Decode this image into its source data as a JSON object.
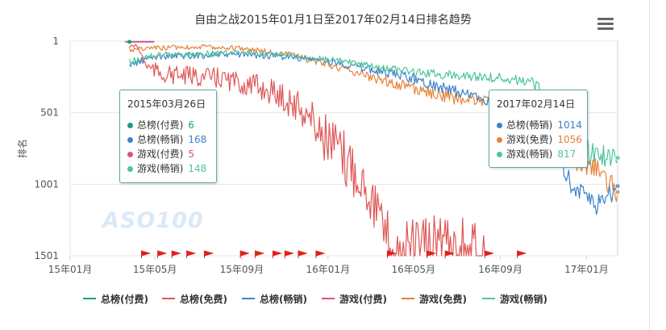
{
  "chart_data": {
    "type": "line",
    "title": "自由之战2015年01月1日至2017年02月14日排名趋势",
    "ylabel": "排名",
    "y_inverted": true,
    "ylim": [
      1,
      1501
    ],
    "y_ticks": [
      "1",
      "501",
      "1001",
      "1501"
    ],
    "x_ticks": [
      "15年01月",
      "15年05月",
      "15年09月",
      "16年01月",
      "16年05月",
      "16年09月",
      "17年01月"
    ],
    "xlim": [
      "2015-01-01",
      "2017-02-14"
    ],
    "grid": "horizontal",
    "legend_position": "bottom",
    "series": [
      {
        "name": "总榜(付费)",
        "color": "#16a085",
        "x": [
          "2015-03-26"
        ],
        "values": [
          6
        ]
      },
      {
        "name": "总榜(免费)",
        "color": "#e05757",
        "x": [
          "2015-03-25",
          "2015-04-05",
          "2015-04-20",
          "2015-05-10",
          "2015-06-01",
          "2015-07-01",
          "2015-08-01",
          "2015-09-01",
          "2015-10-01",
          "2015-11-01",
          "2015-12-01",
          "2016-01-01",
          "2016-01-20",
          "2016-02-10",
          "2016-03-01",
          "2016-03-20",
          "2016-04-05",
          "2016-04-20",
          "2016-05-05",
          "2016-05-25",
          "2016-06-15",
          "2016-07-01",
          "2016-07-20",
          "2016-08-10"
        ],
        "values": [
          40,
          30,
          180,
          230,
          240,
          250,
          260,
          300,
          330,
          400,
          500,
          700,
          820,
          900,
          1050,
          1350,
          1480,
          1450,
          1460,
          1440,
          1350,
          1420,
          1470,
          1500
        ]
      },
      {
        "name": "总榜(畅销)",
        "color": "#3d82cc",
        "x": [
          "2015-03-26",
          "2015-05-01",
          "2015-07-01",
          "2015-09-01",
          "2015-11-01",
          "2016-01-01",
          "2016-03-01",
          "2016-05-01",
          "2016-07-01",
          "2016-09-01",
          "2016-10-15",
          "2016-11-15",
          "2016-12-15",
          "2017-01-15",
          "2017-02-14"
        ],
        "values": [
          168,
          110,
          100,
          95,
          110,
          140,
          200,
          260,
          360,
          430,
          480,
          700,
          1050,
          1150,
          1014
        ]
      },
      {
        "name": "游戏(付费)",
        "color": "#d35486",
        "x": [
          "2015-03-20",
          "2015-04-30"
        ],
        "values": [
          5,
          5
        ]
      },
      {
        "name": "游戏(免费)",
        "color": "#e8833a",
        "x": [
          "2015-03-26",
          "2015-05-01",
          "2015-07-01",
          "2015-09-01",
          "2015-11-01",
          "2016-01-01",
          "2016-03-01",
          "2016-05-01",
          "2016-07-01",
          "2016-09-01",
          "2016-10-15",
          "2016-11-15",
          "2016-12-15",
          "2017-01-15",
          "2017-02-14"
        ],
        "values": [
          60,
          50,
          40,
          50,
          90,
          160,
          250,
          330,
          400,
          440,
          470,
          600,
          850,
          900,
          1056
        ]
      },
      {
        "name": "游戏(畅销)",
        "color": "#50c49b",
        "x": [
          "2015-03-26",
          "2015-05-01",
          "2015-07-01",
          "2015-09-01",
          "2015-11-01",
          "2016-01-01",
          "2016-03-01",
          "2016-05-01",
          "2016-07-01",
          "2016-09-01",
          "2016-10-15",
          "2016-11-15",
          "2016-12-15",
          "2017-01-15",
          "2017-02-14"
        ],
        "values": [
          148,
          100,
          90,
          80,
          100,
          130,
          180,
          220,
          240,
          260,
          290,
          420,
          700,
          800,
          817
        ]
      }
    ],
    "flag_dates": [
      "2015-04-12",
      "2015-05-05",
      "2015-05-25",
      "2015-06-15",
      "2015-07-10",
      "2015-08-30",
      "2015-09-20",
      "2015-10-15",
      "2015-11-01",
      "2015-11-20",
      "2015-12-15",
      "2016-03-25",
      "2016-05-20",
      "2016-06-15",
      "2016-08-10",
      "2016-09-25"
    ]
  },
  "tooltip_left": {
    "date": "2015年03月26日",
    "rows": [
      {
        "label": "总榜(付费)",
        "value": "6",
        "color": "#16a085"
      },
      {
        "label": "总榜(畅销)",
        "value": "168",
        "color": "#3d82cc"
      },
      {
        "label": "游戏(付费)",
        "value": "5",
        "color": "#d35486"
      },
      {
        "label": "游戏(畅销)",
        "value": "148",
        "color": "#50c49b"
      }
    ]
  },
  "tooltip_right": {
    "date": "2017年02月14日",
    "rows": [
      {
        "label": "总榜(畅销)",
        "value": "1014",
        "color": "#3d82cc"
      },
      {
        "label": "游戏(免费)",
        "value": "1056",
        "color": "#e8833a"
      },
      {
        "label": "游戏(畅销)",
        "value": "817",
        "color": "#50c49b"
      }
    ]
  },
  "watermark": "ASO100",
  "menu_icon": "hamburger-menu-icon"
}
